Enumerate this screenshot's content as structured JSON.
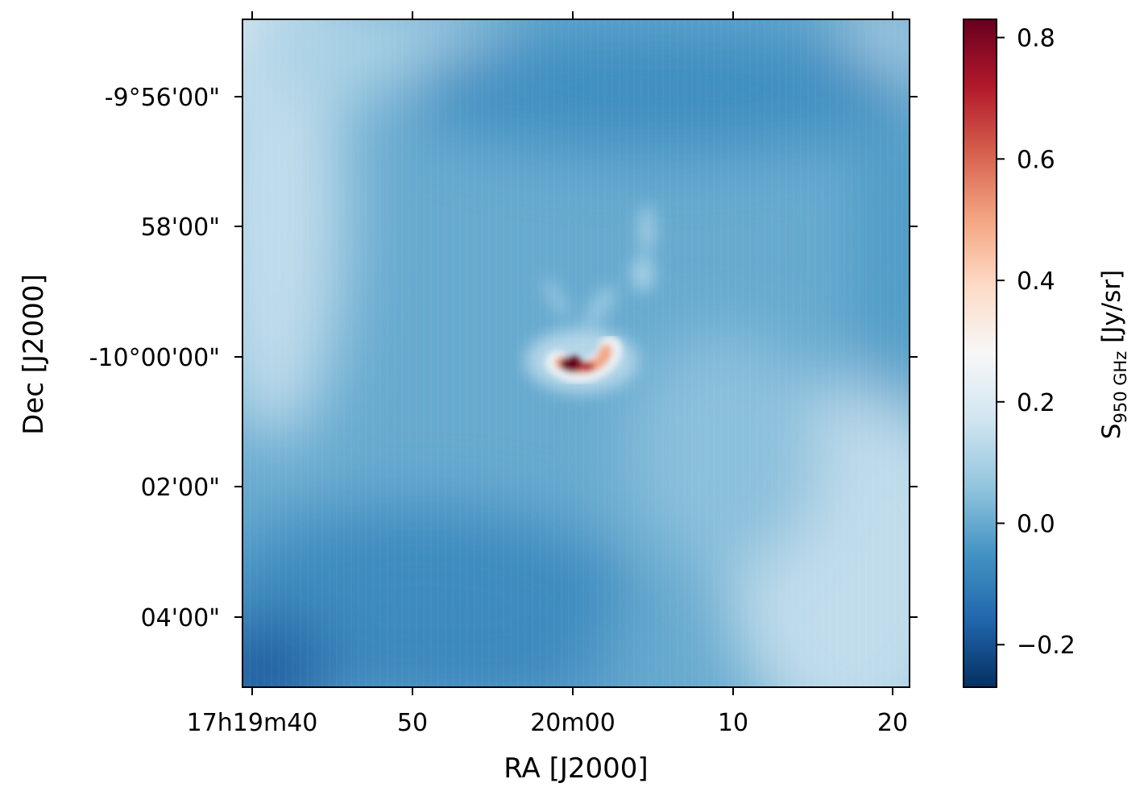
{
  "chart_data": {
    "type": "heatmap",
    "title": "",
    "xlabel": "RA [J2000]",
    "ylabel": "Dec [J2000]",
    "x_ticks": [
      {
        "label": "17h19m40",
        "value": 0
      },
      {
        "label": "50",
        "value": 10
      },
      {
        "label": "20m00",
        "value": 20
      },
      {
        "label": "10",
        "value": 30
      },
      {
        "label": "20",
        "value": 40
      }
    ],
    "y_ticks": [
      {
        "label": "-9°56'00\"",
        "value": -4
      },
      {
        "label": "58'00\"",
        "value": -2
      },
      {
        "label": "-10°00'00\"",
        "value": 0
      },
      {
        "label": "02'00\"",
        "value": 2
      },
      {
        "label": "04'00\"",
        "value": 4
      }
    ],
    "colorbar": {
      "label_main": "S",
      "label_sub": "950 GHz",
      "label_unit": " [Jy/sr]",
      "range": [
        -0.27,
        0.83
      ],
      "ticks": [
        {
          "label": "−0.2",
          "value": -0.2
        },
        {
          "label": "0.0",
          "value": 0.0
        },
        {
          "label": "0.2",
          "value": 0.2
        },
        {
          "label": "0.4",
          "value": 0.4
        },
        {
          "label": "0.6",
          "value": 0.6
        },
        {
          "label": "0.8",
          "value": 0.8
        }
      ],
      "colormap": "RdBu_r"
    },
    "field": {
      "background_level": 0.0,
      "peak_value": 0.83,
      "peak_position": {
        "ra_offset_s": 20,
        "dec_offset_arcmin": 0.1
      },
      "features": [
        "compact bright arc source near center",
        "faint filament extending north-east of source",
        "brighter emission toward upper-left and lower-right edges",
        "darker corners at lower-left"
      ]
    }
  }
}
